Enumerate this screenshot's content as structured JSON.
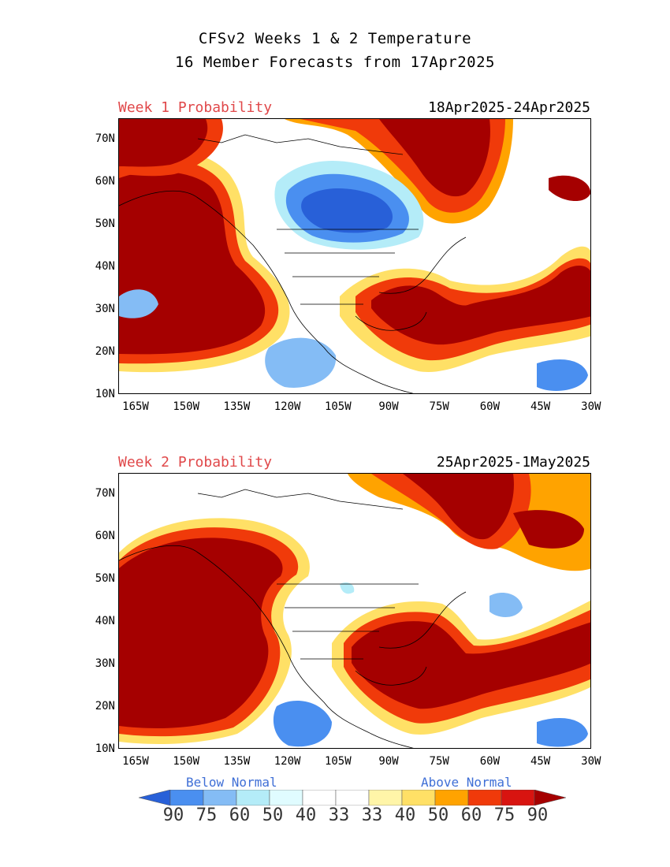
{
  "title": {
    "line1": "CFSv2 Weeks 1 & 2 Temperature",
    "line2": "16 Member Forecasts from 17Apr2025"
  },
  "panels": [
    {
      "label": "Week 1 Probability",
      "dates": "18Apr2025-24Apr2025"
    },
    {
      "label": "Week 2 Probability",
      "dates": "25Apr2025-1May2025"
    }
  ],
  "axes": {
    "lat_labels": [
      "70N",
      "60N",
      "50N",
      "40N",
      "30N",
      "20N",
      "10N"
    ],
    "lon_labels": [
      "165W",
      "150W",
      "135W",
      "120W",
      "105W",
      "90W",
      "75W",
      "60W",
      "45W",
      "30W"
    ],
    "lat_range": [
      10,
      75
    ],
    "lon_range": [
      -170,
      -30
    ]
  },
  "legend": {
    "below_label": "Below Normal",
    "above_label": "Above Normal",
    "values": [
      "90",
      "75",
      "60",
      "50",
      "40",
      "33",
      "33",
      "40",
      "50",
      "60",
      "75",
      "90"
    ],
    "colors": [
      "#2860d8",
      "#4a8ff0",
      "#84bcf5",
      "#b4ecf8",
      "#e0fcff",
      "#ffffff",
      "#ffffff",
      "#fff5a8",
      "#ffe066",
      "#ffa300",
      "#f03a0a",
      "#d81410",
      "#a50000"
    ]
  }
}
